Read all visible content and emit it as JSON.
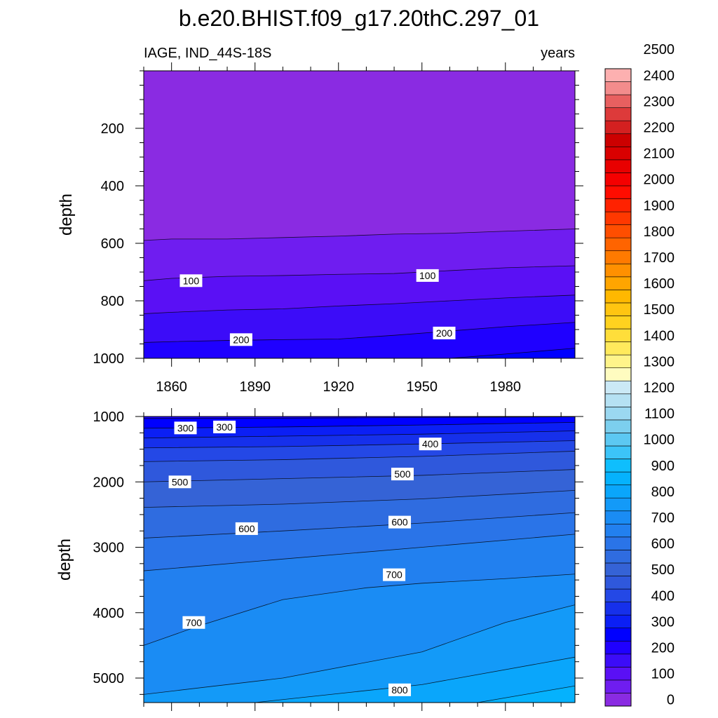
{
  "chart_data": {
    "title": "b.e20.BHIST.f09_g17.20thC.297_01",
    "left_string": "IAGE, IND_44S-18S",
    "right_string": "years",
    "type": "contour",
    "x_label": "",
    "x_ticks": [
      1860,
      1890,
      1920,
      1950,
      1980
    ],
    "x_range": [
      1850,
      2005
    ],
    "panels": [
      {
        "ylabel": "depth",
        "y_range": [
          0,
          1000
        ],
        "y_ticks": [
          200,
          400,
          600,
          800,
          1000
        ],
        "contour_lines": [
          {
            "value": 50,
            "x": [
              1850,
              1860,
              1880,
              1900,
              1920,
              1940,
              1960,
              1980,
              2005
            ],
            "y": [
              590,
              585,
              585,
              580,
              575,
              568,
              565,
              558,
              550
            ]
          },
          {
            "value": 100,
            "x": [
              1850,
              1860,
              1880,
              1900,
              1920,
              1940,
              1960,
              1980,
              2005
            ],
            "y": [
              730,
              722,
              715,
              712,
              708,
              705,
              695,
              685,
              678
            ]
          },
          {
            "value": 150,
            "x": [
              1850,
              1860,
              1880,
              1900,
              1920,
              1940,
              1960,
              1980,
              2005
            ],
            "y": [
              845,
              840,
              832,
              828,
              818,
              810,
              800,
              790,
              780
            ]
          },
          {
            "value": 200,
            "x": [
              1850,
              1860,
              1880,
              1900,
              1920,
              1940,
              1960,
              1980,
              2005
            ],
            "y": [
              945,
              942,
              938,
              935,
              933,
              920,
              905,
              890,
              875
            ]
          },
          {
            "value": 250,
            "x": [
              1960,
              1980,
              2005
            ],
            "y": [
              1000,
              985,
              965
            ]
          }
        ],
        "contour_labels": [
          {
            "text": "100",
            "x": 1867,
            "y": 730
          },
          {
            "text": "100",
            "x": 1952,
            "y": 712
          },
          {
            "text": "200",
            "x": 1885,
            "y": 935
          },
          {
            "text": "200",
            "x": 1958,
            "y": 912
          }
        ]
      },
      {
        "ylabel": "depth",
        "y_range": [
          1000,
          5375
        ],
        "y_ticks": [
          1000,
          2000,
          3000,
          4000,
          5000
        ],
        "contour_lines": [
          {
            "value": 250,
            "x": [
              1850,
              1900,
              1950,
              2005
            ],
            "y": [
              1030,
              1025,
              1015,
              1005
            ]
          },
          {
            "value": 300,
            "x": [
              1850,
              1900,
              1950,
              2005
            ],
            "y": [
              1180,
              1160,
              1130,
              1090
            ]
          },
          {
            "value": 350,
            "x": [
              1850,
              1900,
              1950,
              2005
            ],
            "y": [
              1330,
              1300,
              1270,
              1220
            ]
          },
          {
            "value": 400,
            "x": [
              1850,
              1900,
              1950,
              2005
            ],
            "y": [
              1480,
              1460,
              1420,
              1370
            ]
          },
          {
            "value": 450,
            "x": [
              1850,
              1900,
              1950,
              2005
            ],
            "y": [
              1690,
              1660,
              1610,
              1530
            ]
          },
          {
            "value": 500,
            "x": [
              1850,
              1900,
              1950,
              2005
            ],
            "y": [
              2000,
              1950,
              1900,
              1810
            ]
          },
          {
            "value": 550,
            "x": [
              1850,
              1900,
              1950,
              2005
            ],
            "y": [
              2390,
              2340,
              2260,
              2130
            ]
          },
          {
            "value": 600,
            "x": [
              1850,
              1900,
              1950,
              2005
            ],
            "y": [
              2860,
              2750,
              2630,
              2470
            ]
          },
          {
            "value": 650,
            "x": [
              1850,
              1900,
              1950,
              2005
            ],
            "y": [
              3360,
              3180,
              3000,
              2800
            ]
          },
          {
            "value": 700,
            "x": [
              1850,
              1870,
              1900,
              1930,
              1950,
              1980,
              2005
            ],
            "y": [
              4500,
              4200,
              3800,
              3620,
              3550,
              3480,
              3410
            ]
          },
          {
            "value": 750,
            "x": [
              1850,
              1900,
              1950,
              1980,
              2005
            ],
            "y": [
              5250,
              5000,
              4600,
              4150,
              3880
            ]
          },
          {
            "value": 800,
            "x": [
              1890,
              1950,
              2005
            ],
            "y": [
              5375,
              5100,
              4680
            ]
          },
          {
            "value": 850,
            "x": [
              1970,
              2005
            ],
            "y": [
              5375,
              5120
            ]
          }
        ],
        "contour_labels": [
          {
            "text": "300",
            "x": 1865,
            "y": 1175
          },
          {
            "text": "300",
            "x": 1879,
            "y": 1160
          },
          {
            "text": "400",
            "x": 1953,
            "y": 1420
          },
          {
            "text": "500",
            "x": 1863,
            "y": 2000
          },
          {
            "text": "500",
            "x": 1943,
            "y": 1880
          },
          {
            "text": "600",
            "x": 1887,
            "y": 2715
          },
          {
            "text": "600",
            "x": 1942,
            "y": 2615
          },
          {
            "text": "700",
            "x": 1868,
            "y": 4150
          },
          {
            "text": "700",
            "x": 1940,
            "y": 3420
          },
          {
            "text": "800",
            "x": 1942,
            "y": 5180
          }
        ]
      }
    ],
    "colorbar": {
      "labels": [
        "0",
        "100",
        "200",
        "300",
        "400",
        "500",
        "600",
        "700",
        "800",
        "900",
        "1000",
        "1100",
        "1200",
        "1300",
        "1400",
        "1500",
        "1600",
        "1700",
        "1800",
        "1900",
        "2000",
        "2100",
        "2200",
        "2300",
        "2400",
        "2500"
      ],
      "colors": [
        "#8a2be2",
        "#6f1df0",
        "#5a10f5",
        "#3c0cf8",
        "#1f00ff",
        "#0000ff",
        "#0b1ff5",
        "#1630eb",
        "#2448e6",
        "#2f58dc",
        "#3563d6",
        "#2f6ce0",
        "#2a74e8",
        "#2280ef",
        "#1a8cf4",
        "#139af8",
        "#0aa6fb",
        "#05b2fd",
        "#0fbefd",
        "#3cc4f8",
        "#5cc8f2",
        "#7ccfee",
        "#9bd8f1",
        "#b5e1f3",
        "#cbe9f6",
        "#fffcc0",
        "#fff48a",
        "#ffea5c",
        "#ffde3a",
        "#ffd21f",
        "#ffc511",
        "#ffb800",
        "#ffa500",
        "#ff9000",
        "#ff7a00",
        "#ff6400",
        "#ff4e00",
        "#ff3800",
        "#ff2200",
        "#ff0c00",
        "#f50000",
        "#e80000",
        "#d90000",
        "#cc0000",
        "#d42020",
        "#dd3a3a",
        "#e86060",
        "#f38c8c",
        "#fdb0b0"
      ]
    }
  }
}
